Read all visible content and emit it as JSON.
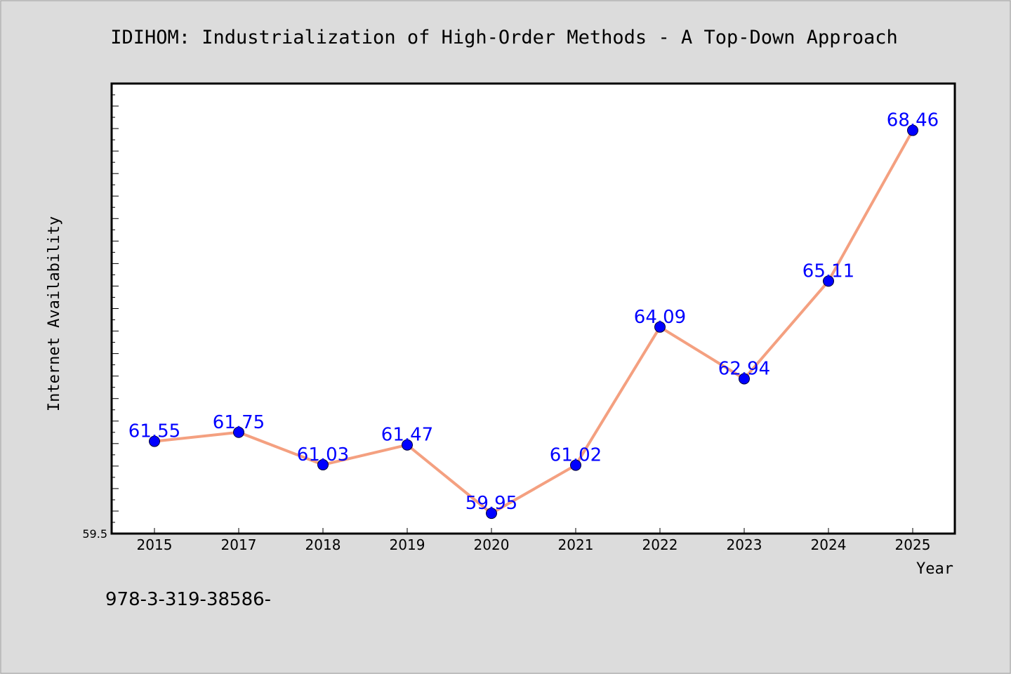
{
  "chart_data": {
    "type": "line",
    "title": "IDIHOM: Industrialization of High-Order Methods - A Top-Down Approach",
    "xlabel": "Year",
    "ylabel": "Internet Availability",
    "categories": [
      "2015",
      "2017",
      "2018",
      "2019",
      "2020",
      "2021",
      "2022",
      "2023",
      "2024",
      "2025"
    ],
    "values": [
      61.55,
      61.75,
      61.03,
      61.47,
      59.95,
      61.02,
      64.09,
      62.94,
      65.11,
      68.46
    ],
    "data_labels": [
      "61.55",
      "61.75",
      "61.03",
      "61.47",
      "59.95",
      "61.02",
      "64.09",
      "62.94",
      "65.11",
      "68.46"
    ],
    "y_min_label": "59.5",
    "ylim": [
      59.5,
      69.5
    ],
    "grid": false,
    "legend": "none",
    "line_color": "#f4a080",
    "marker_color": "#0000ff",
    "label_color": "#0000ff"
  },
  "footer_text": "978-3-319-38586-"
}
